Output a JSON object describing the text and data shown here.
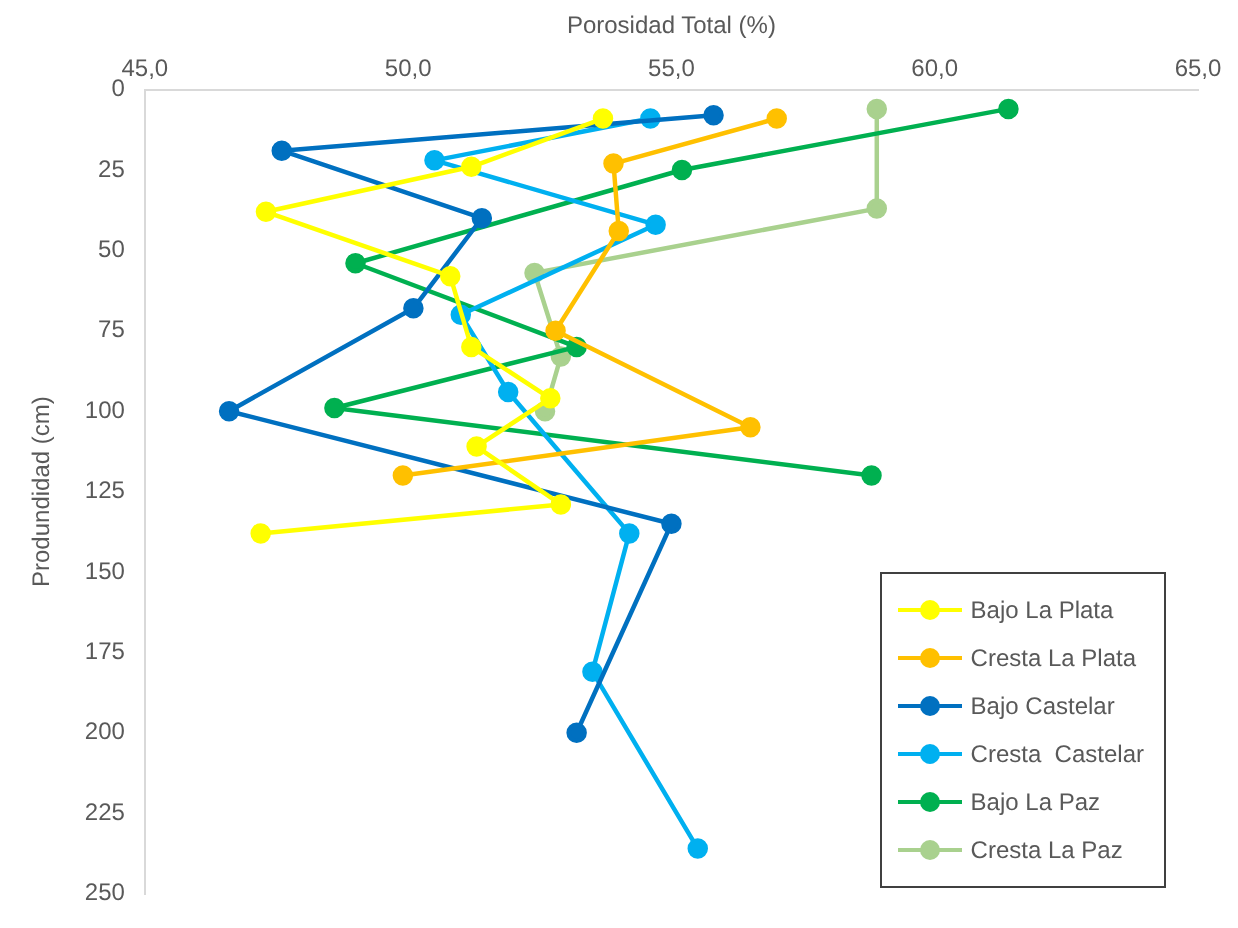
{
  "chart_data": {
    "type": "line",
    "xlabel": "Porosidad Total (%)",
    "ylabel": "Produndidad (cm)",
    "xlim": [
      45,
      65
    ],
    "xticks": [
      {
        "value": 45,
        "label": "45,0"
      },
      {
        "value": 50,
        "label": "50,0"
      },
      {
        "value": 55,
        "label": "55,0"
      },
      {
        "value": 60,
        "label": "60,0"
      },
      {
        "value": 65,
        "label": "65,0"
      }
    ],
    "ylim": [
      250,
      0
    ],
    "yticks": [
      0,
      25,
      50,
      75,
      100,
      125,
      150,
      175,
      200,
      225,
      250
    ],
    "grid": false,
    "legend": "bottom right",
    "marker": "circle",
    "line_style": "solid",
    "series": [
      {
        "name": "Bajo La Plata",
        "color": "#ffff00",
        "x": [
          53.7,
          51.2,
          47.3,
          50.8,
          51.2,
          52.7,
          51.3,
          52.9,
          47.2
        ],
        "values": [
          9,
          24,
          38,
          58,
          80,
          96,
          111,
          129,
          138
        ]
      },
      {
        "name": "Cresta La Plata",
        "color": "#ffc000",
        "x": [
          57.0,
          53.9,
          54.0,
          52.8,
          56.5,
          49.9
        ],
        "values": [
          9,
          23,
          44,
          75,
          105,
          120
        ]
      },
      {
        "name": "Bajo Castelar",
        "color": "#0070c0",
        "x": [
          55.8,
          47.6,
          51.4,
          50.1,
          46.6,
          55.0,
          53.2
        ],
        "values": [
          8,
          19,
          40,
          68,
          100,
          135,
          200
        ]
      },
      {
        "name": "Cresta  Castelar",
        "color": "#00b0f0",
        "x": [
          54.6,
          50.5,
          54.7,
          51.0,
          51.9,
          54.2,
          53.5,
          55.5
        ],
        "values": [
          9,
          22,
          42,
          70,
          94,
          138,
          181,
          236
        ]
      },
      {
        "name": "Bajo La Paz",
        "color": "#00b050",
        "x": [
          61.4,
          55.2,
          49.0,
          53.2,
          48.6,
          58.8
        ],
        "values": [
          6,
          25,
          54,
          80,
          99,
          120
        ]
      },
      {
        "name": "Cresta La Paz",
        "color": "#a9d18e",
        "x": [
          58.9,
          58.9,
          52.4,
          52.9,
          52.6
        ],
        "values": [
          6,
          37,
          57,
          83,
          100
        ]
      }
    ]
  }
}
